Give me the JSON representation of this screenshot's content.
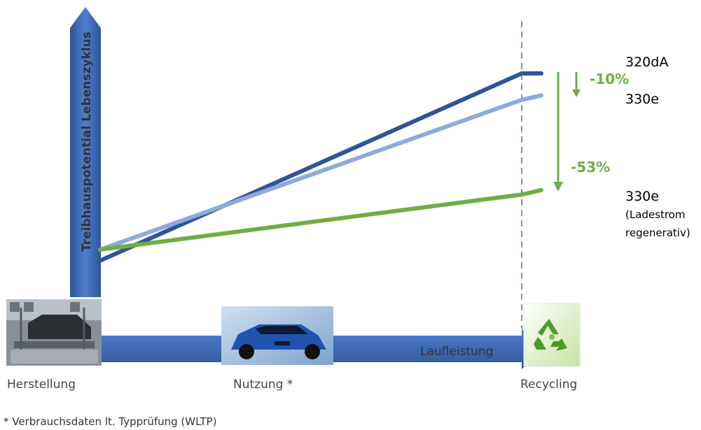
{
  "chart_data": {
    "type": "line",
    "title": "",
    "ylabel": "Treibhauspotential Lebenszyklus",
    "xlabel": "Laufleistung",
    "x": [
      "Herstellung",
      "Nutzung *",
      "Recycling"
    ],
    "stages": [
      "Herstellung",
      "Nutzung *",
      "Recycling"
    ],
    "series": [
      {
        "name": "320dA",
        "sub": [],
        "color": "#2f5597",
        "start": 0.15,
        "end_use": 1.0,
        "end_recycling": 1.0
      },
      {
        "name": "330e",
        "sub": [],
        "color": "#8eaadb",
        "start": 0.2,
        "end_use": 0.88,
        "end_recycling": 0.9
      },
      {
        "name": "330e",
        "sub": [
          "(Ladestrom",
          "regenerativ)"
        ],
        "color": "#70ad47",
        "start": 0.2,
        "end_use": 0.45,
        "end_recycling": 0.47
      }
    ],
    "annotations": [
      {
        "text": "-10%",
        "from": "320dA",
        "to": "330e",
        "color": "#70ad47"
      },
      {
        "text": "-53%",
        "from": "320dA",
        "to": "330e (Ladestrom regenerativ)",
        "color": "#70ad47"
      }
    ],
    "footnote": "* Verbrauchsdaten lt. Typprüfung (WLTP)"
  },
  "colors": {
    "axis": "#4472c4",
    "axis_dark": "#2f5597",
    "annotation": "#70ad47",
    "dashed_line": "#4472c4"
  },
  "icons": [
    "factory-image",
    "car-image",
    "recycling-icon"
  ]
}
